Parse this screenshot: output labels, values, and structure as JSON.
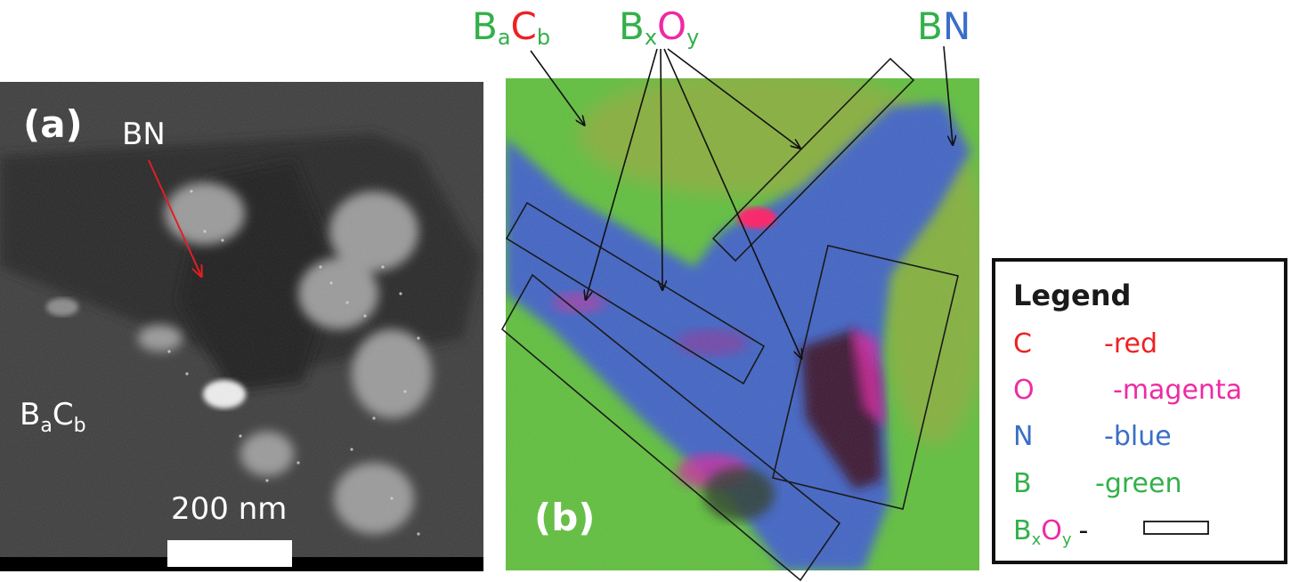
{
  "panel_a": {
    "label": "(a)",
    "bn_label": "BN",
    "bac_main_b": "B",
    "bac_sub_a": "a",
    "bac_main_c": "C",
    "bac_sub_b": "b",
    "scalebar_label": "200 nm"
  },
  "panel_b": {
    "label": "(b)",
    "top_bac_b": "B",
    "top_bac_a": "a",
    "top_bac_c": "C",
    "top_bac_bsub": "b",
    "top_bxoy_b": "B",
    "top_bxoy_x": "x",
    "top_bxoy_o": "O",
    "top_bxoy_y": "y",
    "top_bn_b": "B",
    "top_bn_n": "N"
  },
  "legend": {
    "title": "Legend",
    "items": [
      {
        "symbol": "C",
        "desc": "-red",
        "color": "#ee2222"
      },
      {
        "symbol": "O",
        "desc": "-magenta",
        "color": "#ee2aa4"
      },
      {
        "symbol": "N",
        "desc": "-blue",
        "color": "#3a6ec8"
      },
      {
        "symbol": "B",
        "desc": "-green",
        "color": "#33b04a"
      }
    ],
    "bxoy_b": "B",
    "bxoy_x": "x",
    "bxoy_o": "O",
    "bxoy_y": "y",
    "bxoy_dash": "-"
  },
  "colors": {
    "green": "#33b04a",
    "red": "#ee2222",
    "magenta": "#ee2aa4",
    "blue": "#3a6ec8",
    "arrow_red": "#e31e24"
  }
}
